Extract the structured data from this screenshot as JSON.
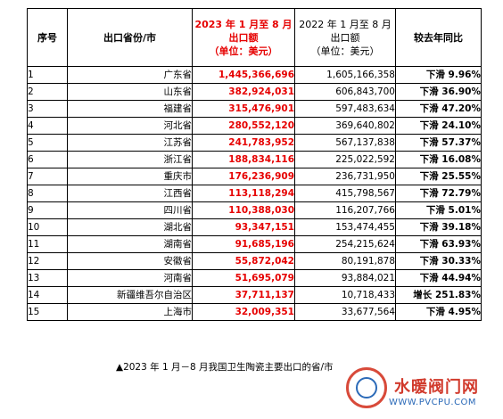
{
  "table": {
    "headers": {
      "index": "序号",
      "province": "出口省份/市",
      "y2023": [
        "2023 年 1 月至 8 月",
        "出口额",
        "（单位：美元）"
      ],
      "y2022": [
        "2022 年 1 月至 8 月",
        "出口额",
        "（单位：美元）"
      ],
      "yoy": "较去年同比"
    },
    "rows": [
      {
        "index": "1",
        "province": "广东省",
        "v2023": "1,445,366,696",
        "v2022": "1,605,166,358",
        "yoy": "下滑 9.96%"
      },
      {
        "index": "2",
        "province": "山东省",
        "v2023": "382,924,031",
        "v2022": "606,843,700",
        "yoy": "下滑 36.90%"
      },
      {
        "index": "3",
        "province": "福建省",
        "v2023": "315,476,901",
        "v2022": "597,483,634",
        "yoy": "下滑 47.20%"
      },
      {
        "index": "4",
        "province": "河北省",
        "v2023": "280,552,120",
        "v2022": "369,640,802",
        "yoy": "下滑 24.10%"
      },
      {
        "index": "5",
        "province": "江苏省",
        "v2023": "241,783,952",
        "v2022": "567,137,838",
        "yoy": "下滑 57.37%"
      },
      {
        "index": "6",
        "province": "浙江省",
        "v2023": "188,834,116",
        "v2022": "225,022,592",
        "yoy": "下滑 16.08%"
      },
      {
        "index": "7",
        "province": "重庆市",
        "v2023": "176,236,909",
        "v2022": "236,731,950",
        "yoy": "下滑 25.55%"
      },
      {
        "index": "8",
        "province": "江西省",
        "v2023": "113,118,294",
        "v2022": "415,798,567",
        "yoy": "下滑 72.79%"
      },
      {
        "index": "9",
        "province": "四川省",
        "v2023": "110,388,030",
        "v2022": "116,207,766",
        "yoy": "下滑 5.01%"
      },
      {
        "index": "10",
        "province": "湖北省",
        "v2023": "93,347,151",
        "v2022": "153,474,455",
        "yoy": "下滑 39.18%"
      },
      {
        "index": "11",
        "province": "湖南省",
        "v2023": "91,685,196",
        "v2022": "254,215,624",
        "yoy": "下滑 63.93%"
      },
      {
        "index": "12",
        "province": "安徽省",
        "v2023": "55,872,042",
        "v2022": "80,191,878",
        "yoy": "下滑 30.33%"
      },
      {
        "index": "13",
        "province": "河南省",
        "v2023": "51,695,079",
        "v2022": "93,884,021",
        "yoy": "下滑 44.94%"
      },
      {
        "index": "14",
        "province": "新疆维吾尔自治区",
        "v2023": "37,711,137",
        "v2022": "10,718,433",
        "yoy": "增长 251.83%"
      },
      {
        "index": "15",
        "province": "上海市",
        "v2023": "32,009,351",
        "v2022": "33,677,564",
        "yoy": "下滑 4.95%"
      }
    ]
  },
  "caption": "▲2023 年 1 月－8 月我国卫生陶瓷主要出口的省/市",
  "watermark": {
    "name": "水暖阀门网",
    "url": "WWW.PVCPU.COM"
  },
  "colors": {
    "highlight": "#e60000",
    "watermark_red": "#d13a2c",
    "watermark_blue": "#2b6ab8"
  }
}
